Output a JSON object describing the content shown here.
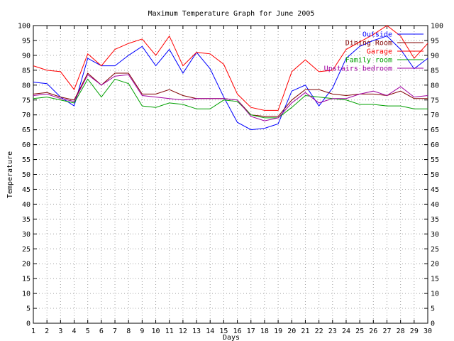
{
  "chart_data": {
    "type": "line",
    "title": "Maximum Temperature Graph for June 2005",
    "xlabel": "Days",
    "ylabel": "Temperature",
    "xlim": [
      1,
      30
    ],
    "ylim": [
      0,
      100
    ],
    "x_ticks": [
      1,
      2,
      3,
      4,
      5,
      6,
      7,
      8,
      9,
      10,
      11,
      12,
      13,
      14,
      15,
      16,
      17,
      18,
      19,
      20,
      21,
      22,
      23,
      24,
      25,
      26,
      27,
      28,
      29,
      30
    ],
    "y_ticks": [
      0,
      5,
      10,
      15,
      20,
      25,
      30,
      35,
      40,
      45,
      50,
      55,
      60,
      65,
      70,
      75,
      80,
      85,
      90,
      95,
      100
    ],
    "grid": true,
    "right_axis_labels": true,
    "legend_position": "top-right",
    "x": [
      1,
      2,
      3,
      4,
      5,
      6,
      7,
      8,
      9,
      10,
      11,
      12,
      13,
      14,
      15,
      16,
      17,
      18,
      19,
      20,
      21,
      22,
      23,
      24,
      25,
      26,
      27,
      28,
      29,
      30
    ],
    "series": [
      {
        "name": "Outside",
        "color": "#0000ff",
        "values": [
          81,
          80.5,
          76,
          73,
          89,
          86.5,
          86.5,
          90,
          93,
          86.5,
          92,
          84,
          91,
          85.5,
          76,
          67.5,
          65,
          65.5,
          67,
          78,
          80,
          73,
          79,
          89,
          93,
          95,
          96.5,
          92,
          85.5,
          89
        ]
      },
      {
        "name": "Dining Room",
        "color": "#800000",
        "values": [
          77,
          77.5,
          76,
          75,
          84,
          80,
          84,
          84,
          77,
          77,
          78.5,
          76.5,
          75.5,
          75.5,
          75.5,
          75,
          70,
          69.5,
          69.5,
          75,
          78.5,
          78.5,
          77,
          76.5,
          77,
          77,
          76.5,
          78,
          75.5,
          75.5
        ]
      },
      {
        "name": "Garage",
        "color": "#ff0000",
        "values": [
          86.5,
          85,
          84.5,
          78.5,
          90.5,
          86.5,
          92,
          94,
          95.5,
          90,
          96.5,
          86.5,
          91,
          90.5,
          87,
          77,
          72.5,
          71.5,
          71.5,
          84.5,
          88.5,
          84.5,
          85,
          92,
          94.5,
          97,
          100,
          96.5,
          89,
          94
        ]
      },
      {
        "name": "Family room",
        "color": "#00a000",
        "values": [
          75.5,
          76,
          75,
          74,
          82,
          76,
          82,
          80.5,
          73,
          72.5,
          74,
          73.5,
          72,
          72,
          75,
          74.5,
          70,
          69,
          69,
          72.5,
          76.5,
          76,
          75.5,
          75,
          73.5,
          73.5,
          73,
          73,
          72,
          72
        ]
      },
      {
        "name": "Upstairs bedroom",
        "color": "#a000a0",
        "values": [
          76.5,
          77,
          75.5,
          74.5,
          83.5,
          80,
          83,
          83.5,
          76.5,
          76,
          75.5,
          75,
          75.5,
          75.5,
          75.5,
          75,
          69.5,
          68,
          69,
          74,
          77.5,
          74,
          75.5,
          75.5,
          77,
          78,
          76.5,
          79.5,
          76,
          76.5
        ]
      }
    ]
  }
}
